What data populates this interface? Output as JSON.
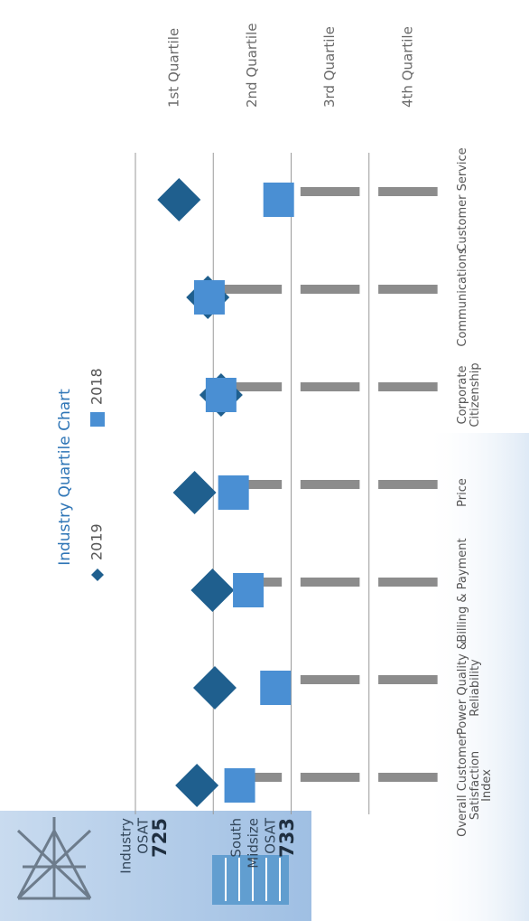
{
  "chart_data": {
    "type": "quartile",
    "title": "Industry Quartile Chart",
    "categories": [
      "Overall Customer Satisfaction Index",
      "Power Quality & Reliability",
      "Billing & Payment",
      "Price",
      "Corporate Citizenship",
      "Communications",
      "Customer Service"
    ],
    "series": [
      {
        "name": "2019",
        "color": "#1f5f8e",
        "marker": "diamond",
        "values": [
          0.79,
          1.02,
          0.99,
          0.76,
          1.1,
          0.93,
          0.56
        ]
      },
      {
        "name": "2018",
        "color": "#4a8fd3",
        "marker": "square",
        "values": [
          1.34,
          1.8,
          1.45,
          1.26,
          1.1,
          0.95,
          1.84
        ]
      }
    ],
    "ylim": [
      0,
      4
    ],
    "yticks": [
      {
        "value": 0.5,
        "label": "1st Quartile"
      },
      {
        "value": 1.5,
        "label": "2nd Quartile"
      },
      {
        "value": 2.5,
        "label": "3rd Quartile"
      },
      {
        "value": 3.5,
        "label": "4th Quartile"
      }
    ],
    "ygrid": [
      0,
      1,
      2,
      3
    ]
  },
  "panel": {
    "industry": [
      "Industry",
      "OSAT",
      "725"
    ],
    "south_midsize": [
      "South",
      "Midsize",
      "OSAT",
      "733"
    ]
  }
}
